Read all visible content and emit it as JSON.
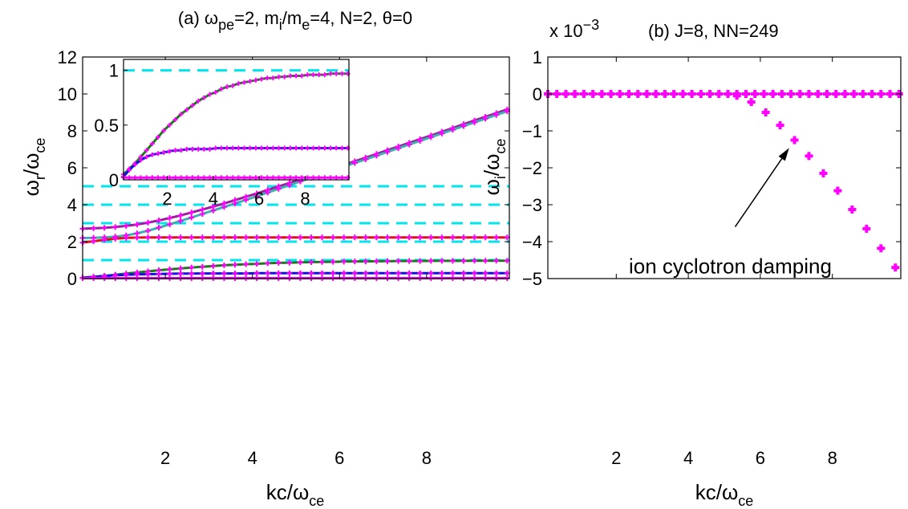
{
  "chart_data": [
    {
      "type": "line",
      "panel": "a",
      "title_parts": [
        "(a) ω",
        "pe",
        "=2, m",
        "i",
        "/m",
        "e",
        "=4, N=2, θ=0"
      ],
      "xlabel_parts": [
        "kc/ω",
        "ce"
      ],
      "ylabel_parts": [
        "ω",
        "r",
        "/ω",
        "ce"
      ],
      "xlim": [
        0.1,
        9.9
      ],
      "ylim": [
        0,
        12
      ],
      "xticks": [
        2,
        4,
        6,
        8
      ],
      "yticks": [
        0,
        2,
        4,
        6,
        8,
        10,
        12
      ],
      "grid": false,
      "hlines": {
        "color": "#00e5ee",
        "values": [
          1,
          2,
          3,
          4,
          5
        ]
      },
      "x": [
        0.1,
        0.35,
        0.6,
        0.85,
        1.1,
        1.35,
        1.6,
        1.85,
        2.1,
        2.35,
        2.6,
        2.85,
        3.1,
        3.35,
        3.6,
        3.85,
        4.1,
        4.35,
        4.6,
        4.85,
        5.1,
        5.35,
        5.6,
        5.85,
        6.1,
        6.35,
        6.6,
        6.85,
        7.1,
        7.35,
        7.6,
        7.85,
        8.1,
        8.35,
        8.6,
        8.85,
        9.1,
        9.35,
        9.6,
        9.85
      ],
      "series": [
        {
          "color": "#9a1f9a",
          "values": [
            2.7,
            2.72,
            2.75,
            2.79,
            2.85,
            2.93,
            3.03,
            3.15,
            3.28,
            3.42,
            3.58,
            3.74,
            3.9,
            4.07,
            4.25,
            4.43,
            4.61,
            4.8,
            4.99,
            5.18,
            5.37,
            5.56,
            5.76,
            5.96,
            6.15,
            6.35,
            6.55,
            6.75,
            6.95,
            7.15,
            7.35,
            7.55,
            7.75,
            7.95,
            8.15,
            8.36,
            8.56,
            8.76,
            8.96,
            9.16
          ]
        },
        {
          "color": "#3cb0b0",
          "values": [
            2.2,
            2.21,
            2.23,
            2.27,
            2.34,
            2.45,
            2.59,
            2.76,
            2.94,
            3.12,
            3.31,
            3.5,
            3.69,
            3.88,
            4.07,
            4.26,
            4.46,
            4.66,
            4.86,
            5.06,
            5.26,
            5.46,
            5.66,
            5.86,
            6.06,
            6.26,
            6.46,
            6.66,
            6.86,
            7.06,
            7.26,
            7.46,
            7.66,
            7.86,
            8.06,
            8.26,
            8.46,
            8.66,
            8.86,
            9.06
          ]
        },
        {
          "color": "#e01010",
          "values": [
            1.95,
            2.02,
            2.1,
            2.16,
            2.2,
            2.22,
            2.23,
            2.23,
            2.23,
            2.23,
            2.23,
            2.23,
            2.23,
            2.23,
            2.23,
            2.23,
            2.23,
            2.23,
            2.23,
            2.23,
            2.23,
            2.23,
            2.23,
            2.23,
            2.23,
            2.23,
            2.23,
            2.23,
            2.23,
            2.23,
            2.23,
            2.23,
            2.23,
            2.23,
            2.23,
            2.23,
            2.23,
            2.23,
            2.23,
            2.23
          ]
        },
        {
          "color": "#1a7a1a",
          "values": [
            0.05,
            0.1,
            0.15,
            0.21,
            0.27,
            0.33,
            0.39,
            0.45,
            0.5,
            0.55,
            0.6,
            0.64,
            0.68,
            0.72,
            0.75,
            0.78,
            0.8,
            0.83,
            0.85,
            0.86,
            0.88,
            0.89,
            0.9,
            0.91,
            0.92,
            0.93,
            0.93,
            0.94,
            0.94,
            0.95,
            0.95,
            0.95,
            0.96,
            0.96,
            0.96,
            0.96,
            0.97,
            0.97,
            0.97,
            0.97
          ]
        },
        {
          "color": "#1010e0",
          "values": [
            0.03,
            0.09,
            0.14,
            0.18,
            0.21,
            0.23,
            0.24,
            0.25,
            0.26,
            0.27,
            0.27,
            0.28,
            0.28,
            0.28,
            0.28,
            0.28,
            0.29,
            0.29,
            0.29,
            0.29,
            0.29,
            0.29,
            0.29,
            0.29,
            0.29,
            0.29,
            0.29,
            0.29,
            0.29,
            0.29,
            0.29,
            0.29,
            0.29,
            0.29,
            0.29,
            0.29,
            0.29,
            0.29,
            0.29,
            0.29
          ]
        },
        {
          "color": "#ff00ff",
          "values": [
            0.02,
            0.02,
            0.02,
            0.02,
            0.02,
            0.02,
            0.02,
            0.02,
            0.02,
            0.02,
            0.02,
            0.02,
            0.02,
            0.02,
            0.02,
            0.02,
            0.02,
            0.02,
            0.02,
            0.02,
            0.02,
            0.02,
            0.02,
            0.02,
            0.02,
            0.02,
            0.02,
            0.02,
            0.02,
            0.02,
            0.02,
            0.02,
            0.02,
            0.02,
            0.02,
            0.02,
            0.02,
            0.02,
            0.02,
            0.02
          ]
        }
      ],
      "marker_color": "#ff00ff",
      "inset": {
        "xlim": [
          0.1,
          9.9
        ],
        "ylim": [
          0,
          1.1
        ],
        "xticks": [
          2,
          4,
          6,
          8
        ],
        "yticks": [
          0,
          0.5,
          1
        ],
        "ytick_labels": [
          "0",
          "0.5",
          "1"
        ],
        "hline": 1,
        "series_indices": [
          3,
          4,
          5
        ]
      }
    },
    {
      "type": "scatter",
      "panel": "b",
      "title": "(b) J=8, NN=249",
      "scale_text_parts": [
        "x 10",
        "−3"
      ],
      "xlabel_parts": [
        "kc/ω",
        "ce"
      ],
      "ylabel_parts": [
        "ω",
        "i",
        "/ω",
        "ce"
      ],
      "xlim": [
        0.1,
        9.9
      ],
      "ylim": [
        -5,
        1
      ],
      "xticks": [
        2,
        4,
        6,
        8
      ],
      "yticks": [
        -5,
        -4,
        -3,
        -2,
        -1,
        0,
        1
      ],
      "ytick_labels": [
        "−5",
        "−4",
        "−3",
        "−2",
        "−1",
        "0",
        "1"
      ],
      "grid": false,
      "series": [
        {
          "color": "#ff00ff",
          "line": true,
          "x": [
            0.1,
            0.35,
            0.6,
            0.85,
            1.1,
            1.35,
            1.6,
            1.85,
            2.1,
            2.35,
            2.6,
            2.85,
            3.1,
            3.35,
            3.6,
            3.85,
            4.1,
            4.35,
            4.6,
            4.85,
            5.1,
            5.35,
            5.6,
            5.85,
            6.1,
            6.35,
            6.6,
            6.85,
            7.1,
            7.35,
            7.6,
            7.85,
            8.1,
            8.35,
            8.6,
            8.85,
            9.1,
            9.35,
            9.6,
            9.85
          ],
          "y": [
            0,
            0,
            0,
            0,
            0,
            0,
            0,
            0,
            0,
            0,
            0,
            0,
            0,
            0,
            0,
            0,
            0,
            0,
            0,
            0,
            0,
            0,
            0,
            0,
            0,
            0,
            0,
            0,
            0,
            0,
            0,
            0,
            0,
            0,
            0,
            0,
            0,
            0,
            0,
            0
          ]
        },
        {
          "color": "#ff00ff",
          "line": false,
          "x": [
            5.35,
            5.75,
            6.15,
            6.55,
            6.95,
            7.35,
            7.75,
            8.15,
            8.55,
            8.95,
            9.35,
            9.75
          ],
          "y": [
            -0.05,
            -0.22,
            -0.5,
            -0.85,
            -1.25,
            -1.68,
            -2.15,
            -2.62,
            -3.13,
            -3.65,
            -4.18,
            -4.7
          ]
        }
      ],
      "annotation": {
        "text": "ion cyclotron damping",
        "arrow_to": [
          6.95,
          -1.25
        ],
        "arrow_from": [
          5.3,
          -3.6
        ]
      }
    }
  ]
}
